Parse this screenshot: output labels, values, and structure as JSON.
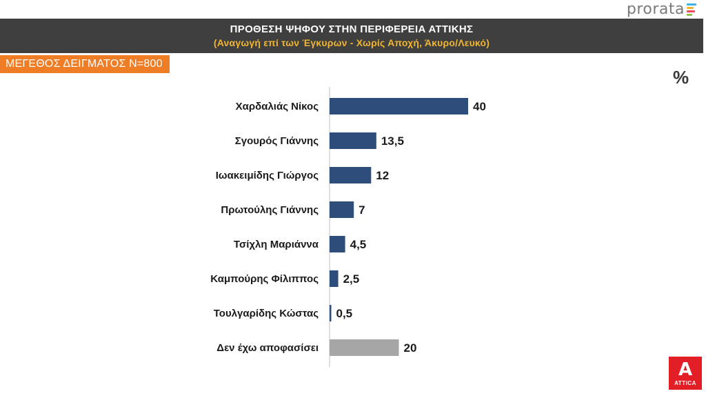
{
  "brand": {
    "pollster": "prorata",
    "pollster_accent_colors": [
      "#3bb2e4",
      "#f0b532",
      "#e84a5f",
      "#8bc34a"
    ],
    "client": "ATTICA",
    "client_color": "#e21f26"
  },
  "header": {
    "title": "ΠΡΟΘΕΣΗ ΨΗΦΟΥ ΣΤΗΝ ΠΕΡΙΦΕΡΕΙΑ ΑΤΤΙΚΗΣ",
    "subtitle": "(Αναγωγή επί των Έγκυρων - Χωρίς Αποχή, Άκυρο/Λευκό)"
  },
  "sample": {
    "label": "ΜΕΓΕΘΟΣ ΔΕΙΓΜΑΤΟΣ Ν=800"
  },
  "unit_label": "%",
  "chart_data": {
    "type": "bar",
    "orientation": "horizontal",
    "categories": [
      "Χαρδαλιάς Νίκος",
      "Σγουρός Γιάννης",
      "Ιωακειμίδης Γιώργος",
      "Πρωτούλης Γιάννης",
      "Τσίχλη Μαριάννα",
      "Καμπούρης Φίλιππος",
      "Τουλγαρίδης Κώστας",
      "Δεν έχω αποφασίσει"
    ],
    "values": [
      40,
      13.5,
      12,
      7,
      4.5,
      2.5,
      0.5,
      20
    ],
    "value_labels": [
      "40",
      "13,5",
      "12",
      "7",
      "4,5",
      "2,5",
      "0,5",
      "20"
    ],
    "colors": [
      "#2e4d7b",
      "#2e4d7b",
      "#2e4d7b",
      "#2e4d7b",
      "#2e4d7b",
      "#2e4d7b",
      "#2e4d7b",
      "#a6a6a6"
    ],
    "xlim": [
      0,
      40
    ],
    "grid": false,
    "axis_line": true
  }
}
